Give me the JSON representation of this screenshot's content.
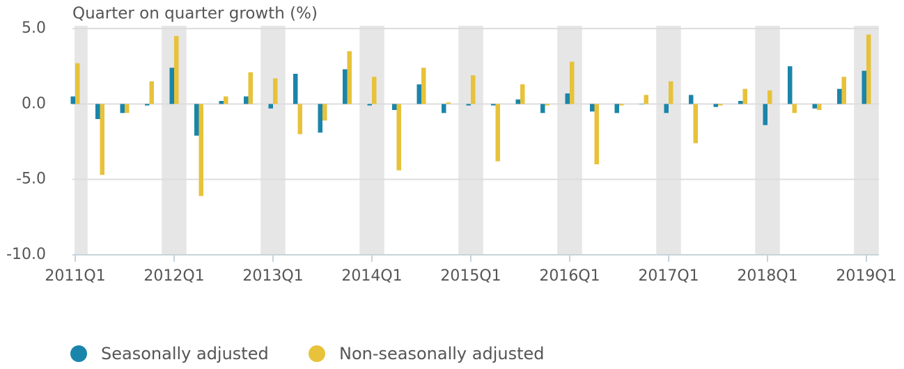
{
  "chart_data": {
    "type": "bar",
    "y_axis_label": "Quarter on quarter growth (%)",
    "categories": [
      "2011Q1",
      null,
      null,
      null,
      "2012Q1",
      null,
      null,
      null,
      "2013Q1",
      null,
      null,
      null,
      "2014Q1",
      null,
      null,
      null,
      "2015Q1",
      null,
      null,
      null,
      "2016Q1",
      null,
      null,
      null,
      "2017Q1",
      null,
      null,
      null,
      "2018Q1",
      null,
      null,
      null,
      "2019Q1"
    ],
    "series": [
      {
        "name": "Seasonally adjusted",
        "color": "#1a85aa",
        "values": [
          0.5,
          -1.0,
          -0.6,
          -0.1,
          2.4,
          -2.1,
          0.2,
          0.5,
          -0.3,
          2.0,
          -1.9,
          2.3,
          -0.1,
          -0.4,
          1.3,
          -0.6,
          -0.1,
          -0.1,
          0.3,
          -0.6,
          0.7,
          -0.5,
          -0.6,
          0.0,
          -0.6,
          0.6,
          -0.2,
          0.2,
          -1.4,
          2.5,
          -0.3,
          1.0,
          2.2
        ]
      },
      {
        "name": "Non-seasonally adjusted",
        "color": "#e7c23a",
        "values": [
          2.7,
          -4.7,
          -0.6,
          1.5,
          4.5,
          -6.1,
          0.5,
          2.1,
          1.7,
          -2.0,
          -1.1,
          3.5,
          1.8,
          -4.4,
          2.4,
          0.1,
          1.9,
          -3.8,
          1.3,
          -0.1,
          2.8,
          -4.0,
          -0.1,
          0.6,
          1.5,
          -2.6,
          -0.1,
          1.0,
          0.9,
          -0.6,
          -0.4,
          1.8,
          4.6
        ]
      }
    ],
    "ylim": [
      -10,
      5
    ],
    "yticks": [
      {
        "value": 5,
        "label": "5.0"
      },
      {
        "value": 0,
        "label": "0.0"
      },
      {
        "value": -5,
        "label": "-5.0"
      },
      {
        "value": -10,
        "label": "-10.0"
      }
    ],
    "grid": true,
    "legend": "bottom"
  }
}
